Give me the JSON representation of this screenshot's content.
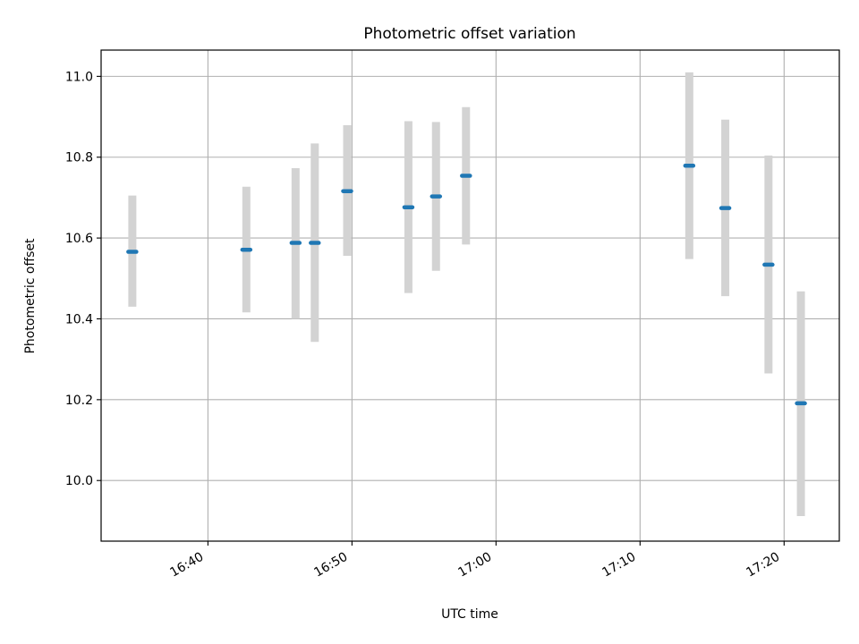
{
  "chart_data": {
    "type": "scatter",
    "title": "Photometric offset variation",
    "xlabel": "UTC time",
    "ylabel": "Photometric offset",
    "x_ticks": [
      "16:40",
      "16:50",
      "17:00",
      "17:10",
      "17:20"
    ],
    "y_ticks": [
      "10.0",
      "10.2",
      "10.4",
      "10.6",
      "10.8",
      "11.0"
    ],
    "xlim": [
      "16:32:35",
      "17:23:50"
    ],
    "ylim": [
      9.85,
      11.065
    ],
    "grid": true,
    "errorbar_color": "#d3d3d3",
    "marker_color": "#1f77b4",
    "points": [
      {
        "time": "16:34:45",
        "y": 10.566,
        "err_low": 10.43,
        "err_high": 10.705
      },
      {
        "time": "16:42:40",
        "y": 10.571,
        "err_low": 10.416,
        "err_high": 10.727
      },
      {
        "time": "16:46:05",
        "y": 10.588,
        "err_low": 10.4,
        "err_high": 10.773
      },
      {
        "time": "16:47:25",
        "y": 10.588,
        "err_low": 10.343,
        "err_high": 10.834
      },
      {
        "time": "16:49:40",
        "y": 10.716,
        "err_low": 10.556,
        "err_high": 10.879
      },
      {
        "time": "16:53:55",
        "y": 10.676,
        "err_low": 10.464,
        "err_high": 10.889
      },
      {
        "time": "16:55:50",
        "y": 10.703,
        "err_low": 10.519,
        "err_high": 10.887
      },
      {
        "time": "16:57:55",
        "y": 10.754,
        "err_low": 10.584,
        "err_high": 10.924
      },
      {
        "time": "17:13:25",
        "y": 10.779,
        "err_low": 10.548,
        "err_high": 11.01
      },
      {
        "time": "17:15:55",
        "y": 10.674,
        "err_low": 10.456,
        "err_high": 10.893
      },
      {
        "time": "17:18:55",
        "y": 10.534,
        "err_low": 10.265,
        "err_high": 10.804
      },
      {
        "time": "17:21:10",
        "y": 10.191,
        "err_low": 9.912,
        "err_high": 10.468
      }
    ]
  }
}
